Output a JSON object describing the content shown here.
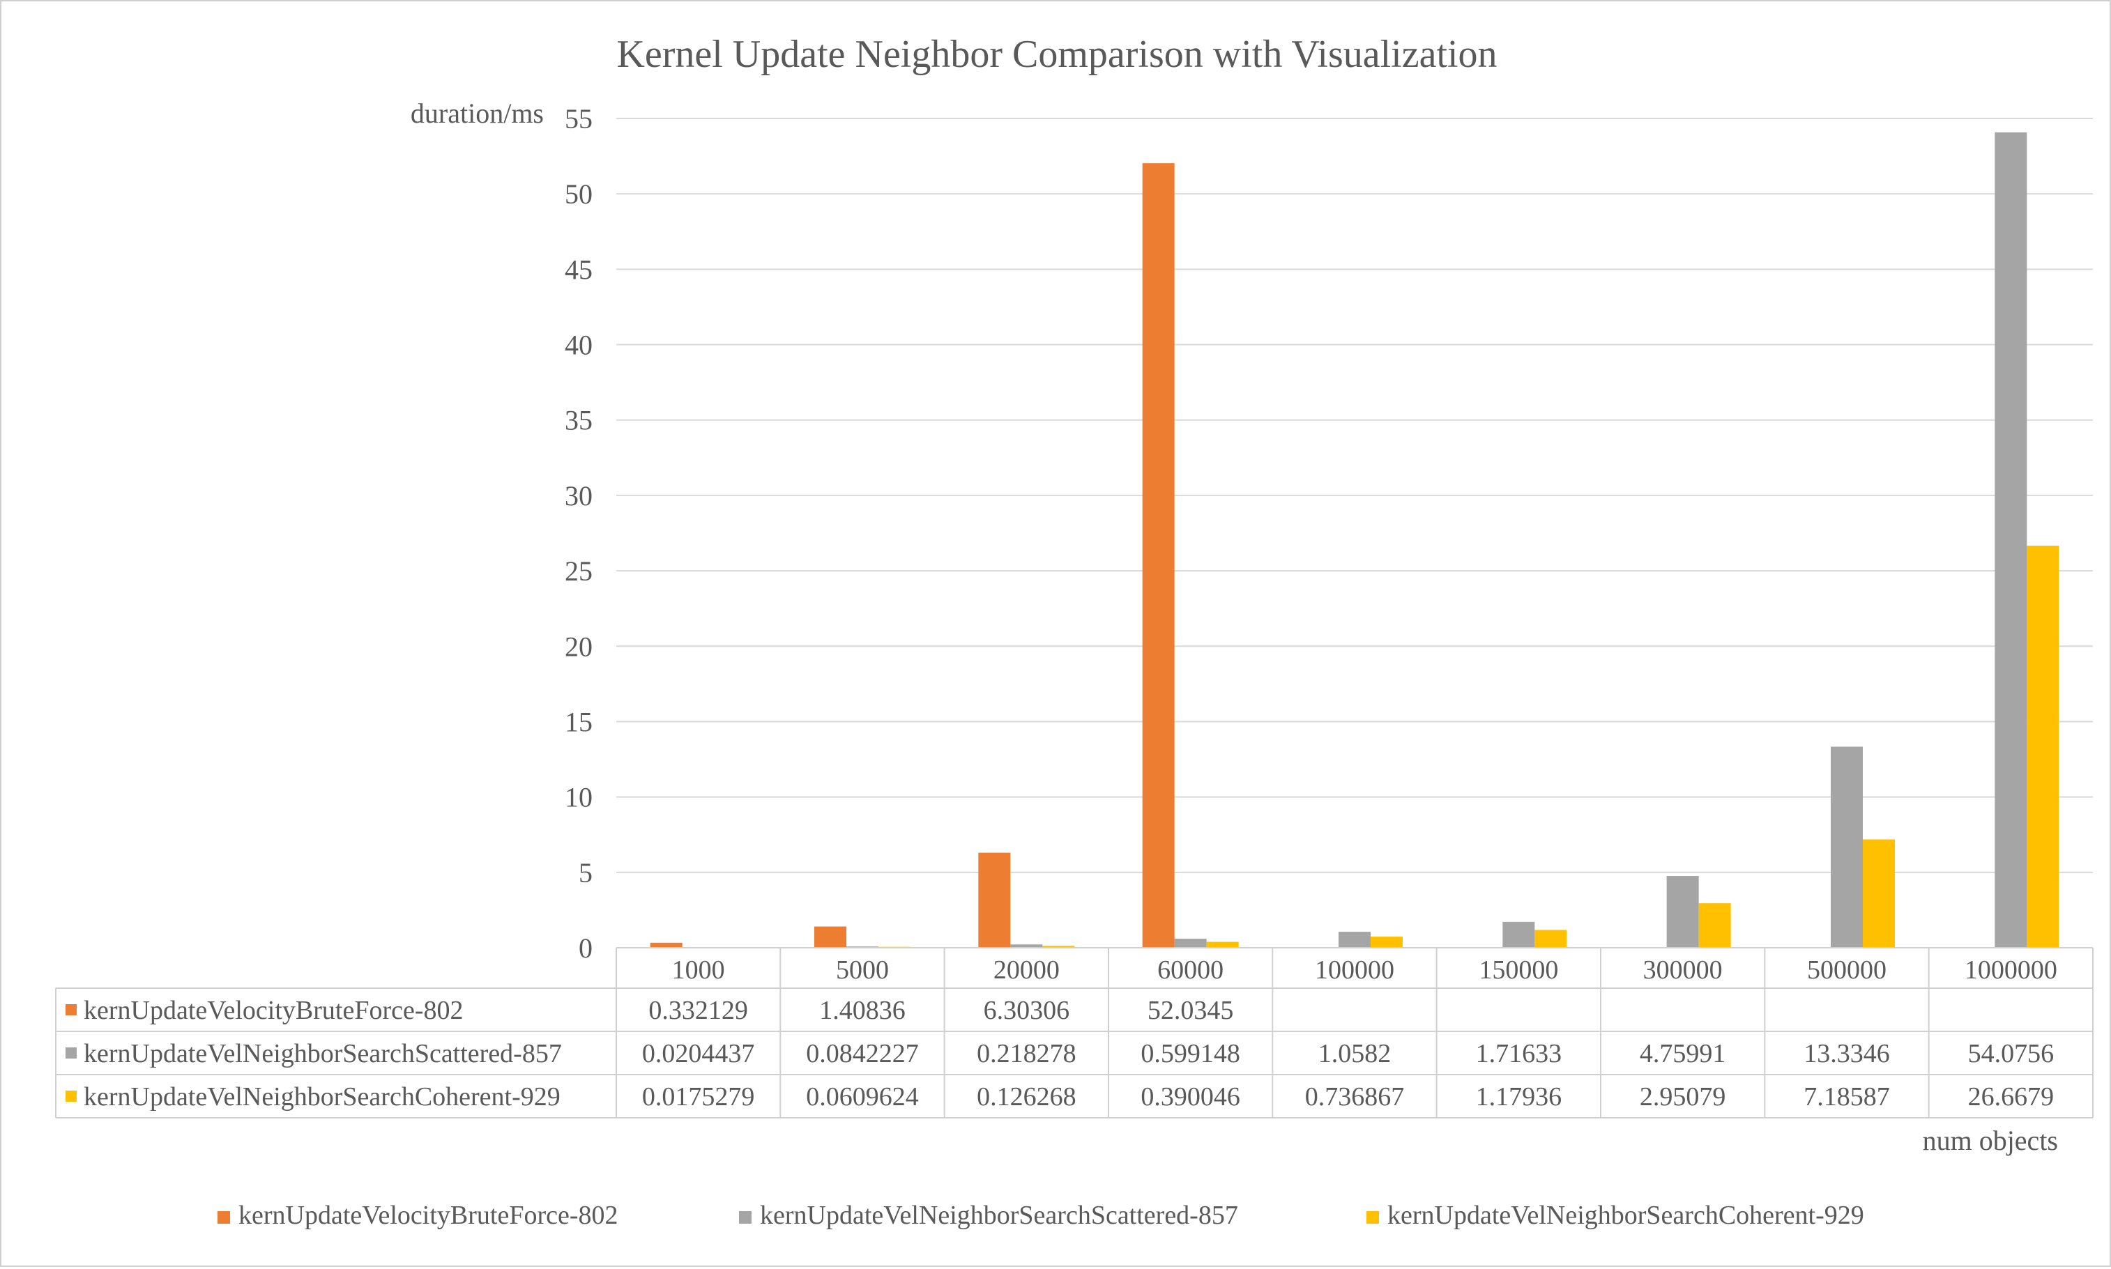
{
  "chart_data": {
    "type": "bar",
    "title": "Kernel Update Neighbor Comparison with Visualization",
    "xlabel": "num objects",
    "ylabel": "duration/ms",
    "ylim": [
      0,
      55
    ],
    "yticks": [
      "0",
      "5",
      "10",
      "15",
      "20",
      "25",
      "30",
      "35",
      "40",
      "45",
      "50",
      "55"
    ],
    "grid": true,
    "legend_position": "bottom",
    "data_table": true,
    "categories": [
      "1000",
      "5000",
      "20000",
      "60000",
      "100000",
      "150000",
      "300000",
      "500000",
      "1000000"
    ],
    "series": [
      {
        "name": "kernUpdateVelocityBruteForce-802",
        "color": "#ED7D31",
        "values": [
          0.332129,
          1.40836,
          6.30306,
          52.0345,
          null,
          null,
          null,
          null,
          null
        ],
        "labels": [
          "0.332129",
          "1.40836",
          "6.30306",
          "52.0345",
          "",
          "",
          "",
          "",
          ""
        ]
      },
      {
        "name": "kernUpdateVelNeighborSearchScattered-857",
        "color": "#A5A5A5",
        "values": [
          0.0204437,
          0.0842227,
          0.218278,
          0.599148,
          1.0582,
          1.71633,
          4.75991,
          13.3346,
          54.0756
        ],
        "labels": [
          "0.0204437",
          "0.0842227",
          "0.218278",
          "0.599148",
          "1.0582",
          "1.71633",
          "4.75991",
          "13.3346",
          "54.0756"
        ]
      },
      {
        "name": "kernUpdateVelNeighborSearchCoherent-929",
        "color": "#FFC000",
        "values": [
          0.0175279,
          0.0609624,
          0.126268,
          0.390046,
          0.736867,
          1.17936,
          2.95079,
          7.18587,
          26.6679
        ],
        "labels": [
          "0.0175279",
          "0.0609624",
          "0.126268",
          "0.390046",
          "0.736867",
          "1.17936",
          "2.95079",
          "7.18587",
          "26.6679"
        ]
      }
    ]
  }
}
